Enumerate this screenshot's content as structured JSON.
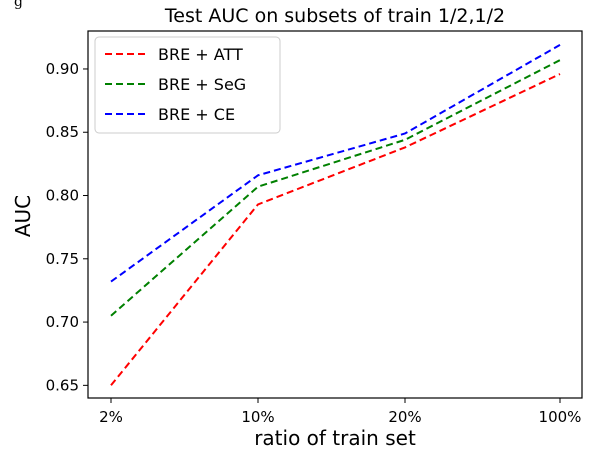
{
  "figure_caption_fragment": "g",
  "chart_data": {
    "type": "line",
    "title": "Test AUC on subsets of train 1/2,1/2",
    "xlabel": "ratio of train set",
    "ylabel": "AUC",
    "categories": [
      "2%",
      "10%",
      "20%",
      "100%"
    ],
    "ylim": [
      0.64,
      0.93
    ],
    "yticks": [
      "0.65",
      "0.70",
      "0.75",
      "0.80",
      "0.85",
      "0.90"
    ],
    "legend_position": "top-left",
    "line_style": "dashed",
    "grid": false,
    "series": [
      {
        "name": "BRE + ATT",
        "color": "#ff0000",
        "values": [
          0.65,
          0.793,
          0.838,
          0.896
        ]
      },
      {
        "name": "BRE + SeG",
        "color": "#008000",
        "values": [
          0.705,
          0.807,
          0.844,
          0.907
        ]
      },
      {
        "name": "BRE + CE",
        "color": "#0000ff",
        "values": [
          0.732,
          0.816,
          0.849,
          0.919
        ]
      }
    ]
  }
}
